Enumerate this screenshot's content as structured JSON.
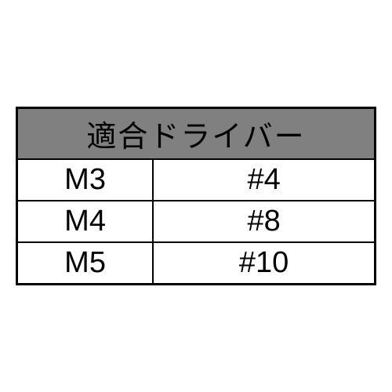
{
  "table": {
    "header": "適合ドライバー",
    "columns": [
      "size",
      "driver"
    ],
    "rows": [
      {
        "size": "M3",
        "driver": "#4"
      },
      {
        "size": "M4",
        "driver": "#8"
      },
      {
        "size": "M5",
        "driver": "#10"
      }
    ],
    "header_bg_color": "#808080",
    "border_color": "#000000",
    "text_color": "#000000",
    "font_size": 38,
    "col_widths": [
      "38%",
      "62%"
    ]
  }
}
